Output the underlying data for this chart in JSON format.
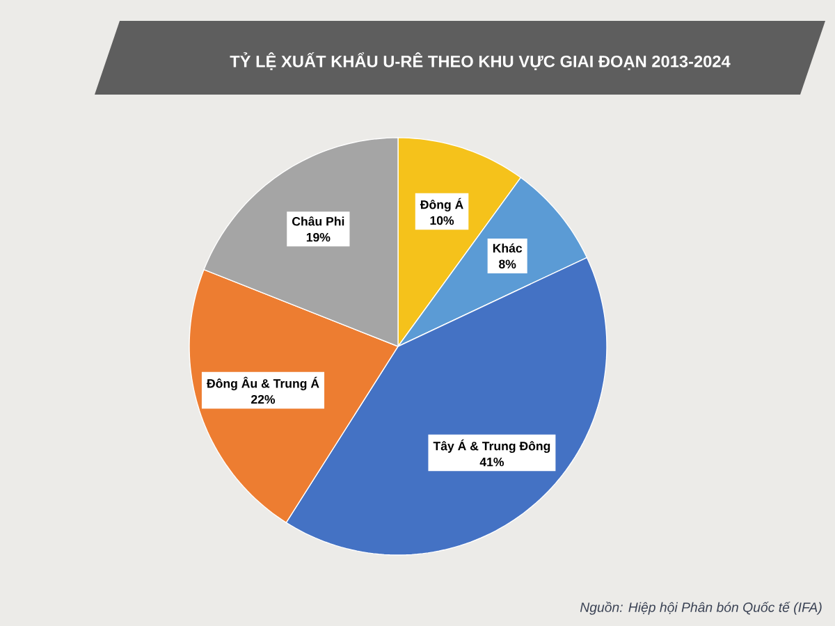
{
  "chart_data": {
    "type": "pie",
    "title": "TỶ LỆ XUẤT KHẨU U-RÊ THEO KHU VỰC GIAI ĐOẠN 2013-2024",
    "categories": [
      "Đông Á",
      "Khác",
      "Tây Á & Trung Đông",
      "Đông Âu & Trung Á",
      "Châu Phi"
    ],
    "values": [
      10,
      8,
      41,
      22,
      19
    ],
    "value_labels": [
      "10%",
      "8%",
      "41%",
      "22%",
      "19%"
    ],
    "colors": [
      "#f5c21b",
      "#5b9bd5",
      "#4472c4",
      "#ed7d31",
      "#a5a5a5"
    ],
    "annotations": [
      "Nguồn: Hiệp hội Phân bón Quốc tế (IFA)"
    ]
  }
}
